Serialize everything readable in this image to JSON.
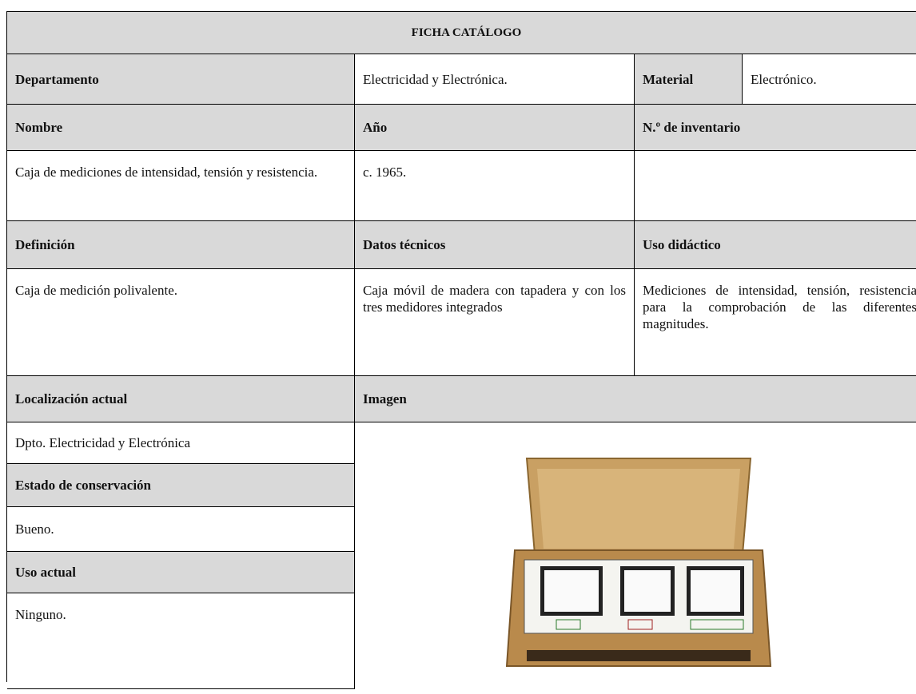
{
  "title": "FICHA CATÁLOGO",
  "departamento": {
    "label": "Departamento",
    "value": "Electricidad y Electrónica."
  },
  "material": {
    "label": "Material",
    "value": "Electrónico."
  },
  "nombre": {
    "label": "Nombre",
    "value": "Caja de mediciones de intensidad, tensión y resistencia."
  },
  "anio": {
    "label": "Año",
    "value": "c. 1965."
  },
  "inventario": {
    "label": "N.º de inventario"
  },
  "definicion": {
    "label": "Definición",
    "value": "Caja de medición polivalente."
  },
  "datos_tecnicos": {
    "label": "Datos técnicos",
    "value": "Caja móvil de madera con tapadera y con los tres medidores integrados"
  },
  "uso_didactico": {
    "label": "Uso didáctico",
    "value": "Mediciones de intensidad, tensión, resistencia para la comprobación de las diferentes magnitudes."
  },
  "localizacion": {
    "label": "Localización actual",
    "value": "Dpto. Electricidad y Electrónica"
  },
  "imagen": {
    "label": "Imagen"
  },
  "estado": {
    "label": "Estado de conservación",
    "value": "Bueno."
  },
  "uso_actual": {
    "label": "Uso actual",
    "value": "Ninguno."
  }
}
